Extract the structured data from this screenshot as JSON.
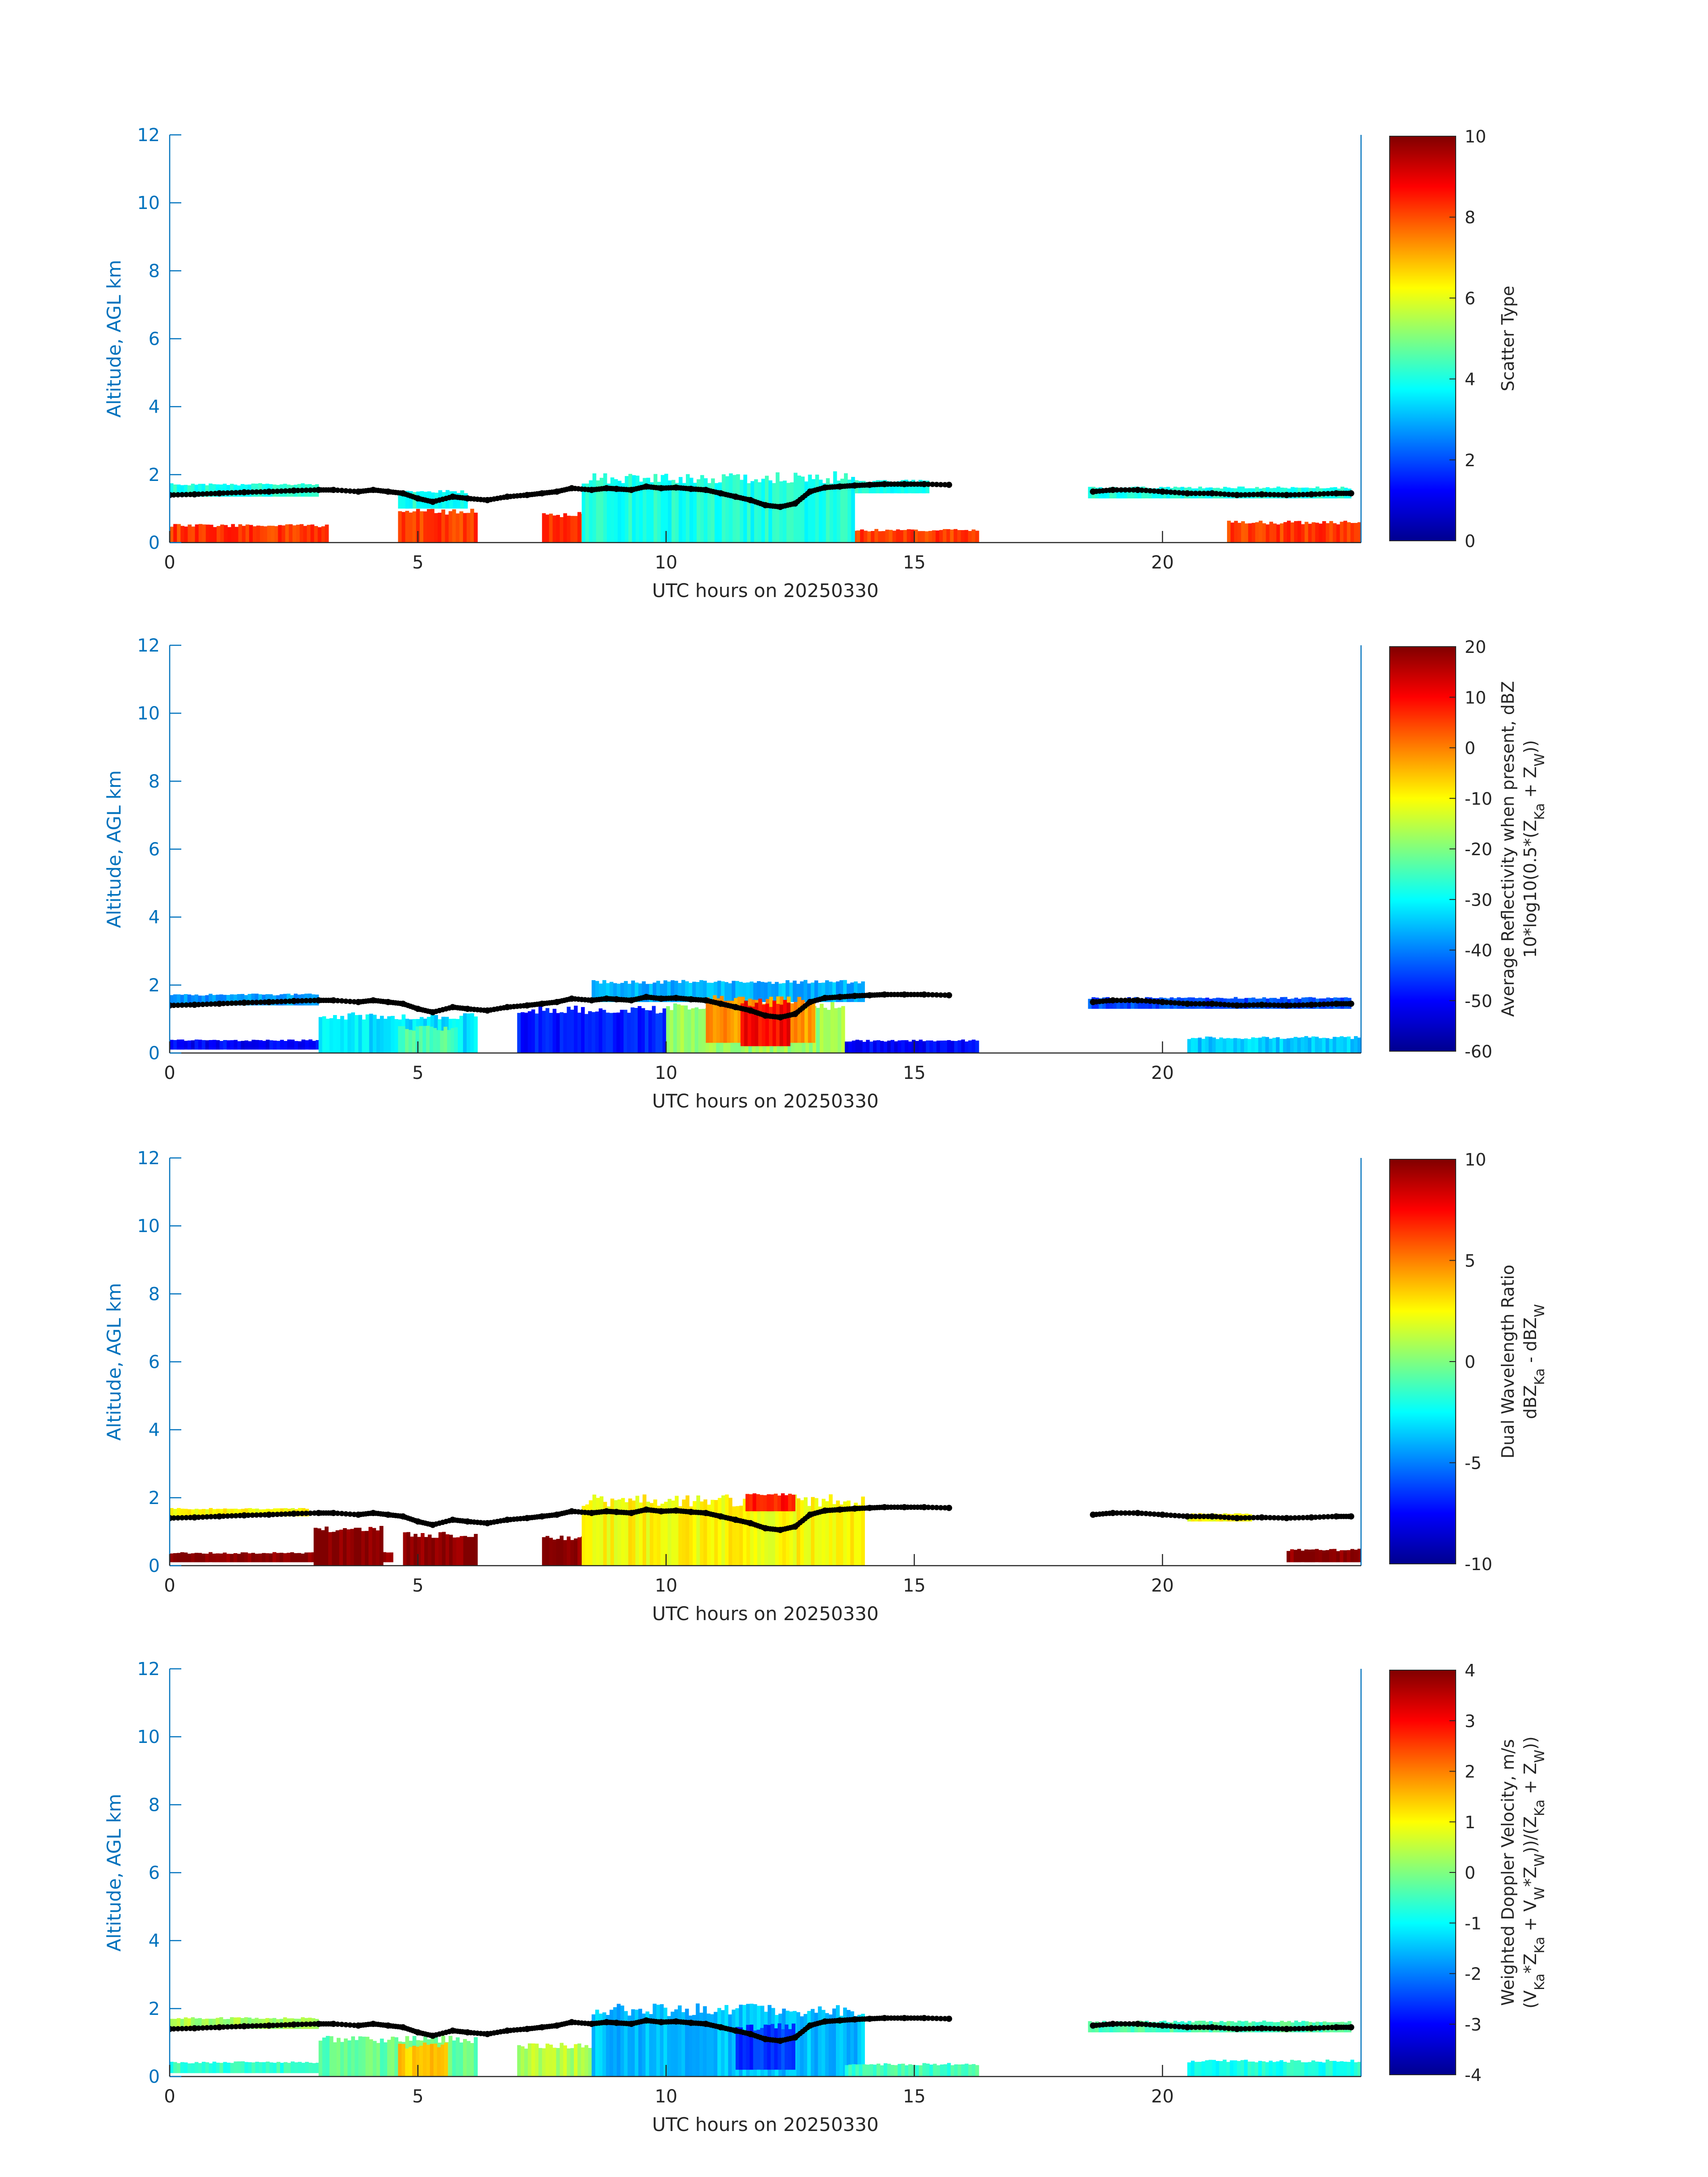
{
  "chart_data": [
    {
      "type": "heatmap",
      "xlabel": "UTC hours on 20250330",
      "ylabel": "Altitude, AGL km",
      "xlim": [
        0,
        24
      ],
      "ylim": [
        0,
        12
      ],
      "xticks": [
        "0",
        "5",
        "10",
        "15",
        "20"
      ],
      "yticks": [
        "0",
        "2",
        "4",
        "6",
        "8",
        "10",
        "12"
      ],
      "colorbar": {
        "label_lines": [
          "Scatter Type"
        ],
        "ticks": [
          "0",
          "2",
          "4",
          "6",
          "8",
          "10"
        ],
        "range": [
          0,
          10
        ]
      },
      "regions": [
        {
          "x0": 0.0,
          "x1": 3.2,
          "y0": 0.0,
          "y1": 0.55,
          "value": 8.2
        },
        {
          "x0": 4.6,
          "x1": 6.2,
          "y0": 0.0,
          "y1": 1.0,
          "value": 8.2
        },
        {
          "x0": 7.5,
          "x1": 10.0,
          "y0": 0.0,
          "y1": 0.9,
          "value": 8.2
        },
        {
          "x0": 13.4,
          "x1": 16.3,
          "y0": 0.0,
          "y1": 0.4,
          "value": 8.2
        },
        {
          "x0": 21.3,
          "x1": 24.0,
          "y0": 0.0,
          "y1": 0.65,
          "value": 8.2
        },
        {
          "x0": 0.0,
          "x1": 3.0,
          "y0": 1.35,
          "y1": 1.75,
          "value": 4.0
        },
        {
          "x0": 4.6,
          "x1": 6.0,
          "y0": 1.0,
          "y1": 1.55,
          "value": 4.0
        },
        {
          "x0": 8.3,
          "x1": 13.8,
          "y0": 0.0,
          "y1": 2.1,
          "value": 4.0
        },
        {
          "x0": 13.8,
          "x1": 15.3,
          "y0": 1.45,
          "y1": 1.85,
          "value": 4.0
        },
        {
          "x0": 18.5,
          "x1": 23.8,
          "y0": 1.3,
          "y1": 1.65,
          "value": 4.0
        }
      ]
    },
    {
      "type": "heatmap",
      "xlabel": "UTC hours on 20250330",
      "ylabel": "Altitude, AGL km",
      "xlim": [
        0,
        24
      ],
      "ylim": [
        0,
        12
      ],
      "xticks": [
        "0",
        "5",
        "10",
        "15",
        "20"
      ],
      "yticks": [
        "0",
        "2",
        "4",
        "6",
        "8",
        "10",
        "12"
      ],
      "colorbar": {
        "label_lines": [
          "Average Reflectivity when present, dBZ",
          "10*log10(0.5*(Z_Ka + Z_W))"
        ],
        "ticks": [
          "-60",
          "-50",
          "-40",
          "-30",
          "-20",
          "-10",
          "0",
          "10",
          "20"
        ],
        "range": [
          -60,
          20
        ]
      },
      "regions": [
        {
          "x0": 0.0,
          "x1": 3.3,
          "y0": 0.1,
          "y1": 0.4,
          "value": -50
        },
        {
          "x0": 0.0,
          "x1": 3.0,
          "y0": 1.4,
          "y1": 1.75,
          "value": -38
        },
        {
          "x0": 3.0,
          "x1": 6.2,
          "y0": 0.0,
          "y1": 1.2,
          "value": -32
        },
        {
          "x0": 4.6,
          "x1": 5.8,
          "y0": 0.0,
          "y1": 0.8,
          "value": -24
        },
        {
          "x0": 7.0,
          "x1": 10.0,
          "y0": 0.0,
          "y1": 1.4,
          "value": -48
        },
        {
          "x0": 8.5,
          "x1": 14.0,
          "y0": 1.5,
          "y1": 2.15,
          "value": -36
        },
        {
          "x0": 10.0,
          "x1": 13.6,
          "y0": 0.0,
          "y1": 1.5,
          "value": -18
        },
        {
          "x0": 10.8,
          "x1": 13.0,
          "y0": 0.3,
          "y1": 1.7,
          "value": -2
        },
        {
          "x0": 11.5,
          "x1": 12.5,
          "y0": 0.2,
          "y1": 1.6,
          "value": 10
        },
        {
          "x0": 13.6,
          "x1": 16.3,
          "y0": 0.0,
          "y1": 0.4,
          "value": -50
        },
        {
          "x0": 18.5,
          "x1": 23.8,
          "y0": 1.3,
          "y1": 1.65,
          "value": -44
        },
        {
          "x0": 20.5,
          "x1": 24.0,
          "y0": 0.0,
          "y1": 0.5,
          "value": -34
        }
      ]
    },
    {
      "type": "heatmap",
      "xlabel": "UTC hours on 20250330",
      "ylabel": "Altitude, AGL km",
      "xlim": [
        0,
        24
      ],
      "ylim": [
        0,
        12
      ],
      "xticks": [
        "0",
        "5",
        "10",
        "15",
        "20"
      ],
      "yticks": [
        "0",
        "2",
        "4",
        "6",
        "8",
        "10",
        "12"
      ],
      "colorbar": {
        "label_lines": [
          "Dual Wavelength Ratio",
          "dBZ_Ka - dBZ_W"
        ],
        "ticks": [
          "-10",
          "-5",
          "0",
          "5",
          "10"
        ],
        "range": [
          -10,
          10
        ]
      },
      "regions": [
        {
          "x0": 0.0,
          "x1": 4.5,
          "y0": 0.1,
          "y1": 0.4,
          "value": 10
        },
        {
          "x0": 2.9,
          "x1": 4.3,
          "y0": 0.0,
          "y1": 1.2,
          "value": 10
        },
        {
          "x0": 4.7,
          "x1": 6.2,
          "y0": 0.0,
          "y1": 1.0,
          "value": 10
        },
        {
          "x0": 7.5,
          "x1": 10.0,
          "y0": 0.0,
          "y1": 0.9,
          "value": 10
        },
        {
          "x0": 0.0,
          "x1": 2.8,
          "y0": 1.45,
          "y1": 1.7,
          "value": 2.5
        },
        {
          "x0": 8.3,
          "x1": 14.0,
          "y0": 0.0,
          "y1": 2.1,
          "value": 2.5
        },
        {
          "x0": 11.6,
          "x1": 12.6,
          "y0": 1.6,
          "y1": 2.15,
          "value": 7
        },
        {
          "x0": 20.5,
          "x1": 21.8,
          "y0": 1.3,
          "y1": 1.55,
          "value": 2.5
        },
        {
          "x0": 22.5,
          "x1": 24.0,
          "y0": 0.1,
          "y1": 0.5,
          "value": 10
        }
      ]
    },
    {
      "type": "heatmap",
      "xlabel": "UTC hours on 20250330",
      "ylabel": "Altitude, AGL km",
      "xlim": [
        0,
        24
      ],
      "ylim": [
        0,
        12
      ],
      "xticks": [
        "0",
        "5",
        "10",
        "15",
        "20"
      ],
      "yticks": [
        "0",
        "2",
        "4",
        "6",
        "8",
        "10",
        "12"
      ],
      "colorbar": {
        "label_lines": [
          "Weighted Doppler Velocity, m/s",
          "(V_Ka*Z_Ka + V_W*Z_W))/(Z_Ka + Z_W))"
        ],
        "ticks": [
          "-4",
          "-3",
          "-2",
          "-1",
          "0",
          "1",
          "2",
          "3",
          "4"
        ],
        "range": [
          -4,
          4
        ]
      },
      "regions": [
        {
          "x0": 0.0,
          "x1": 3.3,
          "y0": 0.1,
          "y1": 0.45,
          "value": -0.6
        },
        {
          "x0": 0.0,
          "x1": 3.0,
          "y0": 1.4,
          "y1": 1.75,
          "value": 0.3
        },
        {
          "x0": 3.0,
          "x1": 6.2,
          "y0": 0.0,
          "y1": 1.2,
          "value": -0.2
        },
        {
          "x0": 4.6,
          "x1": 5.6,
          "y0": 0.0,
          "y1": 1.0,
          "value": 1.4
        },
        {
          "x0": 7.0,
          "x1": 10.0,
          "y0": 0.0,
          "y1": 1.0,
          "value": 0.4
        },
        {
          "x0": 8.5,
          "x1": 14.0,
          "y0": 0.0,
          "y1": 2.15,
          "value": -1.5
        },
        {
          "x0": 11.4,
          "x1": 12.6,
          "y0": 0.2,
          "y1": 1.6,
          "value": -2.6
        },
        {
          "x0": 13.6,
          "x1": 16.3,
          "y0": 0.0,
          "y1": 0.4,
          "value": -0.5
        },
        {
          "x0": 18.5,
          "x1": 23.8,
          "y0": 1.3,
          "y1": 1.65,
          "value": -0.4
        },
        {
          "x0": 20.5,
          "x1": 24.0,
          "y0": 0.0,
          "y1": 0.5,
          "value": -0.8
        }
      ]
    }
  ],
  "cloud_base_series": {
    "x": [
      0.0,
      0.5,
      1.0,
      1.5,
      2.0,
      2.5,
      3.0,
      3.3,
      3.8,
      4.1,
      4.4,
      4.7,
      5.0,
      5.3,
      5.7,
      6.0,
      6.4,
      6.8,
      7.2,
      7.5,
      7.8,
      8.1,
      8.5,
      8.8,
      9.0,
      9.3,
      9.6,
      9.9,
      10.2,
      10.5,
      10.8,
      11.1,
      11.4,
      11.7,
      12.0,
      12.3,
      12.6,
      12.9,
      13.2,
      13.5,
      13.8,
      14.1,
      14.4,
      14.8,
      15.2,
      15.7,
      18.6,
      19.0,
      19.5,
      20.0,
      20.5,
      21.0,
      21.5,
      22.0,
      22.5,
      23.0,
      23.5,
      23.8
    ],
    "y": [
      1.4,
      1.42,
      1.45,
      1.48,
      1.5,
      1.53,
      1.55,
      1.55,
      1.5,
      1.55,
      1.5,
      1.45,
      1.3,
      1.2,
      1.35,
      1.3,
      1.25,
      1.35,
      1.4,
      1.45,
      1.5,
      1.6,
      1.55,
      1.6,
      1.58,
      1.55,
      1.65,
      1.6,
      1.62,
      1.58,
      1.55,
      1.45,
      1.35,
      1.25,
      1.1,
      1.05,
      1.15,
      1.5,
      1.62,
      1.65,
      1.68,
      1.7,
      1.72,
      1.72,
      1.72,
      1.7,
      1.5,
      1.55,
      1.55,
      1.5,
      1.45,
      1.45,
      1.4,
      1.42,
      1.4,
      1.42,
      1.45,
      1.45
    ]
  }
}
